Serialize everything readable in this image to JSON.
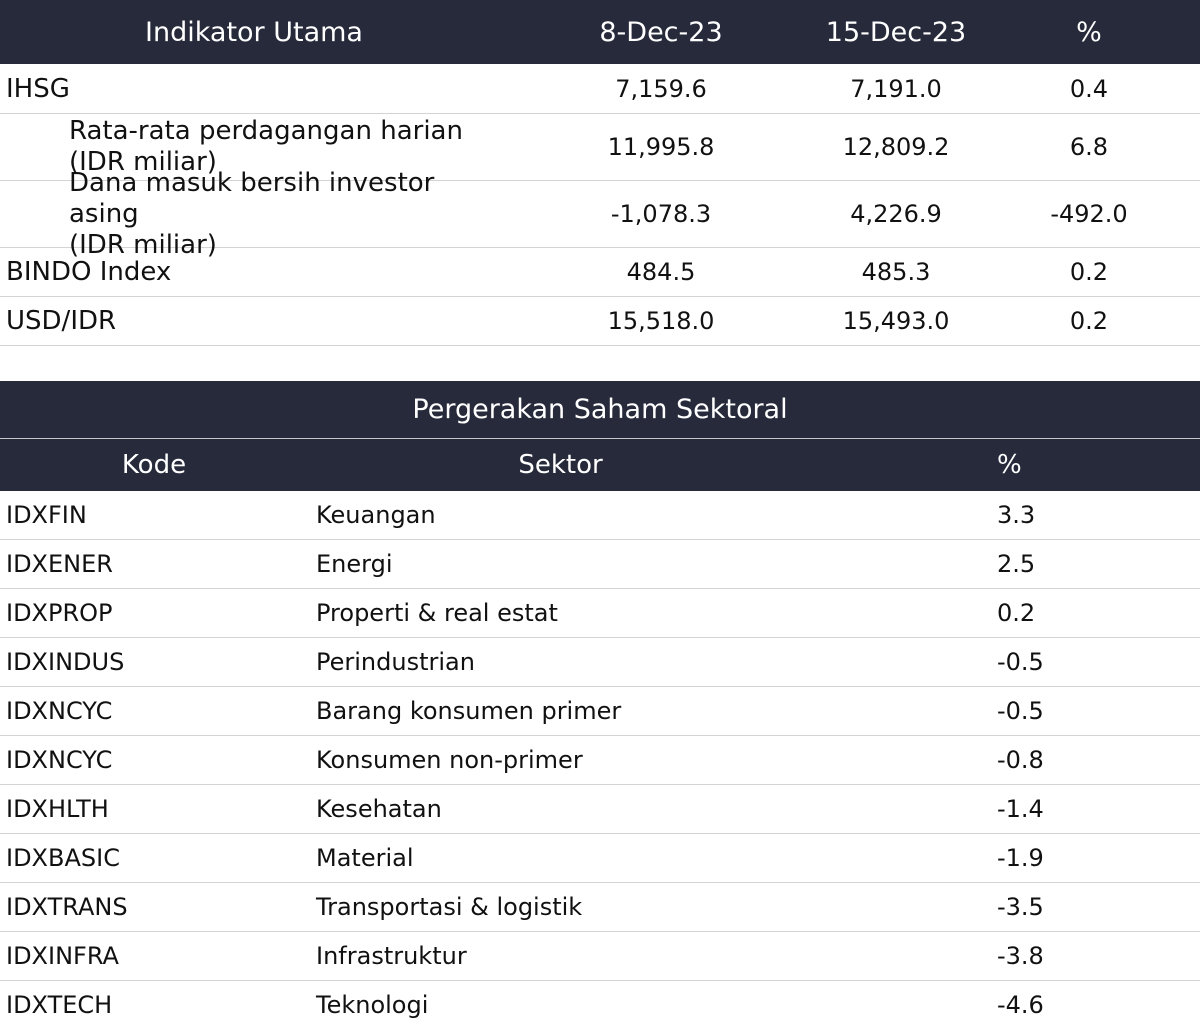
{
  "indicators": {
    "headers": {
      "label": "Indikator Utama",
      "date1": "8-Dec-23",
      "date2": "15-Dec-23",
      "pct": "%"
    },
    "rows": [
      {
        "label": "IHSG",
        "line2": "",
        "d1": "7,159.6",
        "d2": "7,191.0",
        "pct": "0.4"
      },
      {
        "label": "Rata-rata perdagangan harian",
        "line2": "(IDR miliar)",
        "d1": "11,995.8",
        "d2": "12,809.2",
        "pct": "6.8"
      },
      {
        "label": "Dana masuk bersih investor asing",
        "line2": "(IDR miliar)",
        "d1": "-1,078.3",
        "d2": "4,226.9",
        "pct": "-492.0"
      },
      {
        "label": "BINDO Index",
        "line2": "",
        "d1": "484.5",
        "d2": "485.3",
        "pct": "0.2"
      },
      {
        "label": "USD/IDR",
        "line2": "",
        "d1": "15,518.0",
        "d2": "15,493.0",
        "pct": "0.2"
      }
    ]
  },
  "sectors": {
    "title": "Pergerakan Saham Sektoral",
    "headers": {
      "code": "Kode",
      "sector": "Sektor",
      "pct": "%"
    },
    "rows": [
      {
        "code": "IDXFIN",
        "sector": "Keuangan",
        "pct": "3.3"
      },
      {
        "code": "IDXENER",
        "sector": "Energi",
        "pct": "2.5"
      },
      {
        "code": "IDXPROP",
        "sector": "Properti & real estat",
        "pct": "0.2"
      },
      {
        "code": "IDXINDUS",
        "sector": "Perindustrian",
        "pct": "-0.5"
      },
      {
        "code": "IDXNCYC",
        "sector": "Barang konsumen primer",
        "pct": "-0.5"
      },
      {
        "code": "IDXNCYC",
        "sector": "Konsumen non-primer",
        "pct": "-0.8"
      },
      {
        "code": "IDXHLTH",
        "sector": "Kesehatan",
        "pct": "-1.4"
      },
      {
        "code": "IDXBASIC",
        "sector": "Material",
        "pct": "-1.9"
      },
      {
        "code": "IDXTRANS",
        "sector": "Transportasi & logistik",
        "pct": "-3.5"
      },
      {
        "code": "IDXINFRA",
        "sector": "Infrastruktur",
        "pct": "-3.8"
      },
      {
        "code": "IDXTECH",
        "sector": "Teknologi",
        "pct": "-4.6"
      }
    ]
  },
  "colors": {
    "header_bg": "#262a3b",
    "header_text": "#ffffff",
    "row_divider": "#d4d4d4"
  }
}
